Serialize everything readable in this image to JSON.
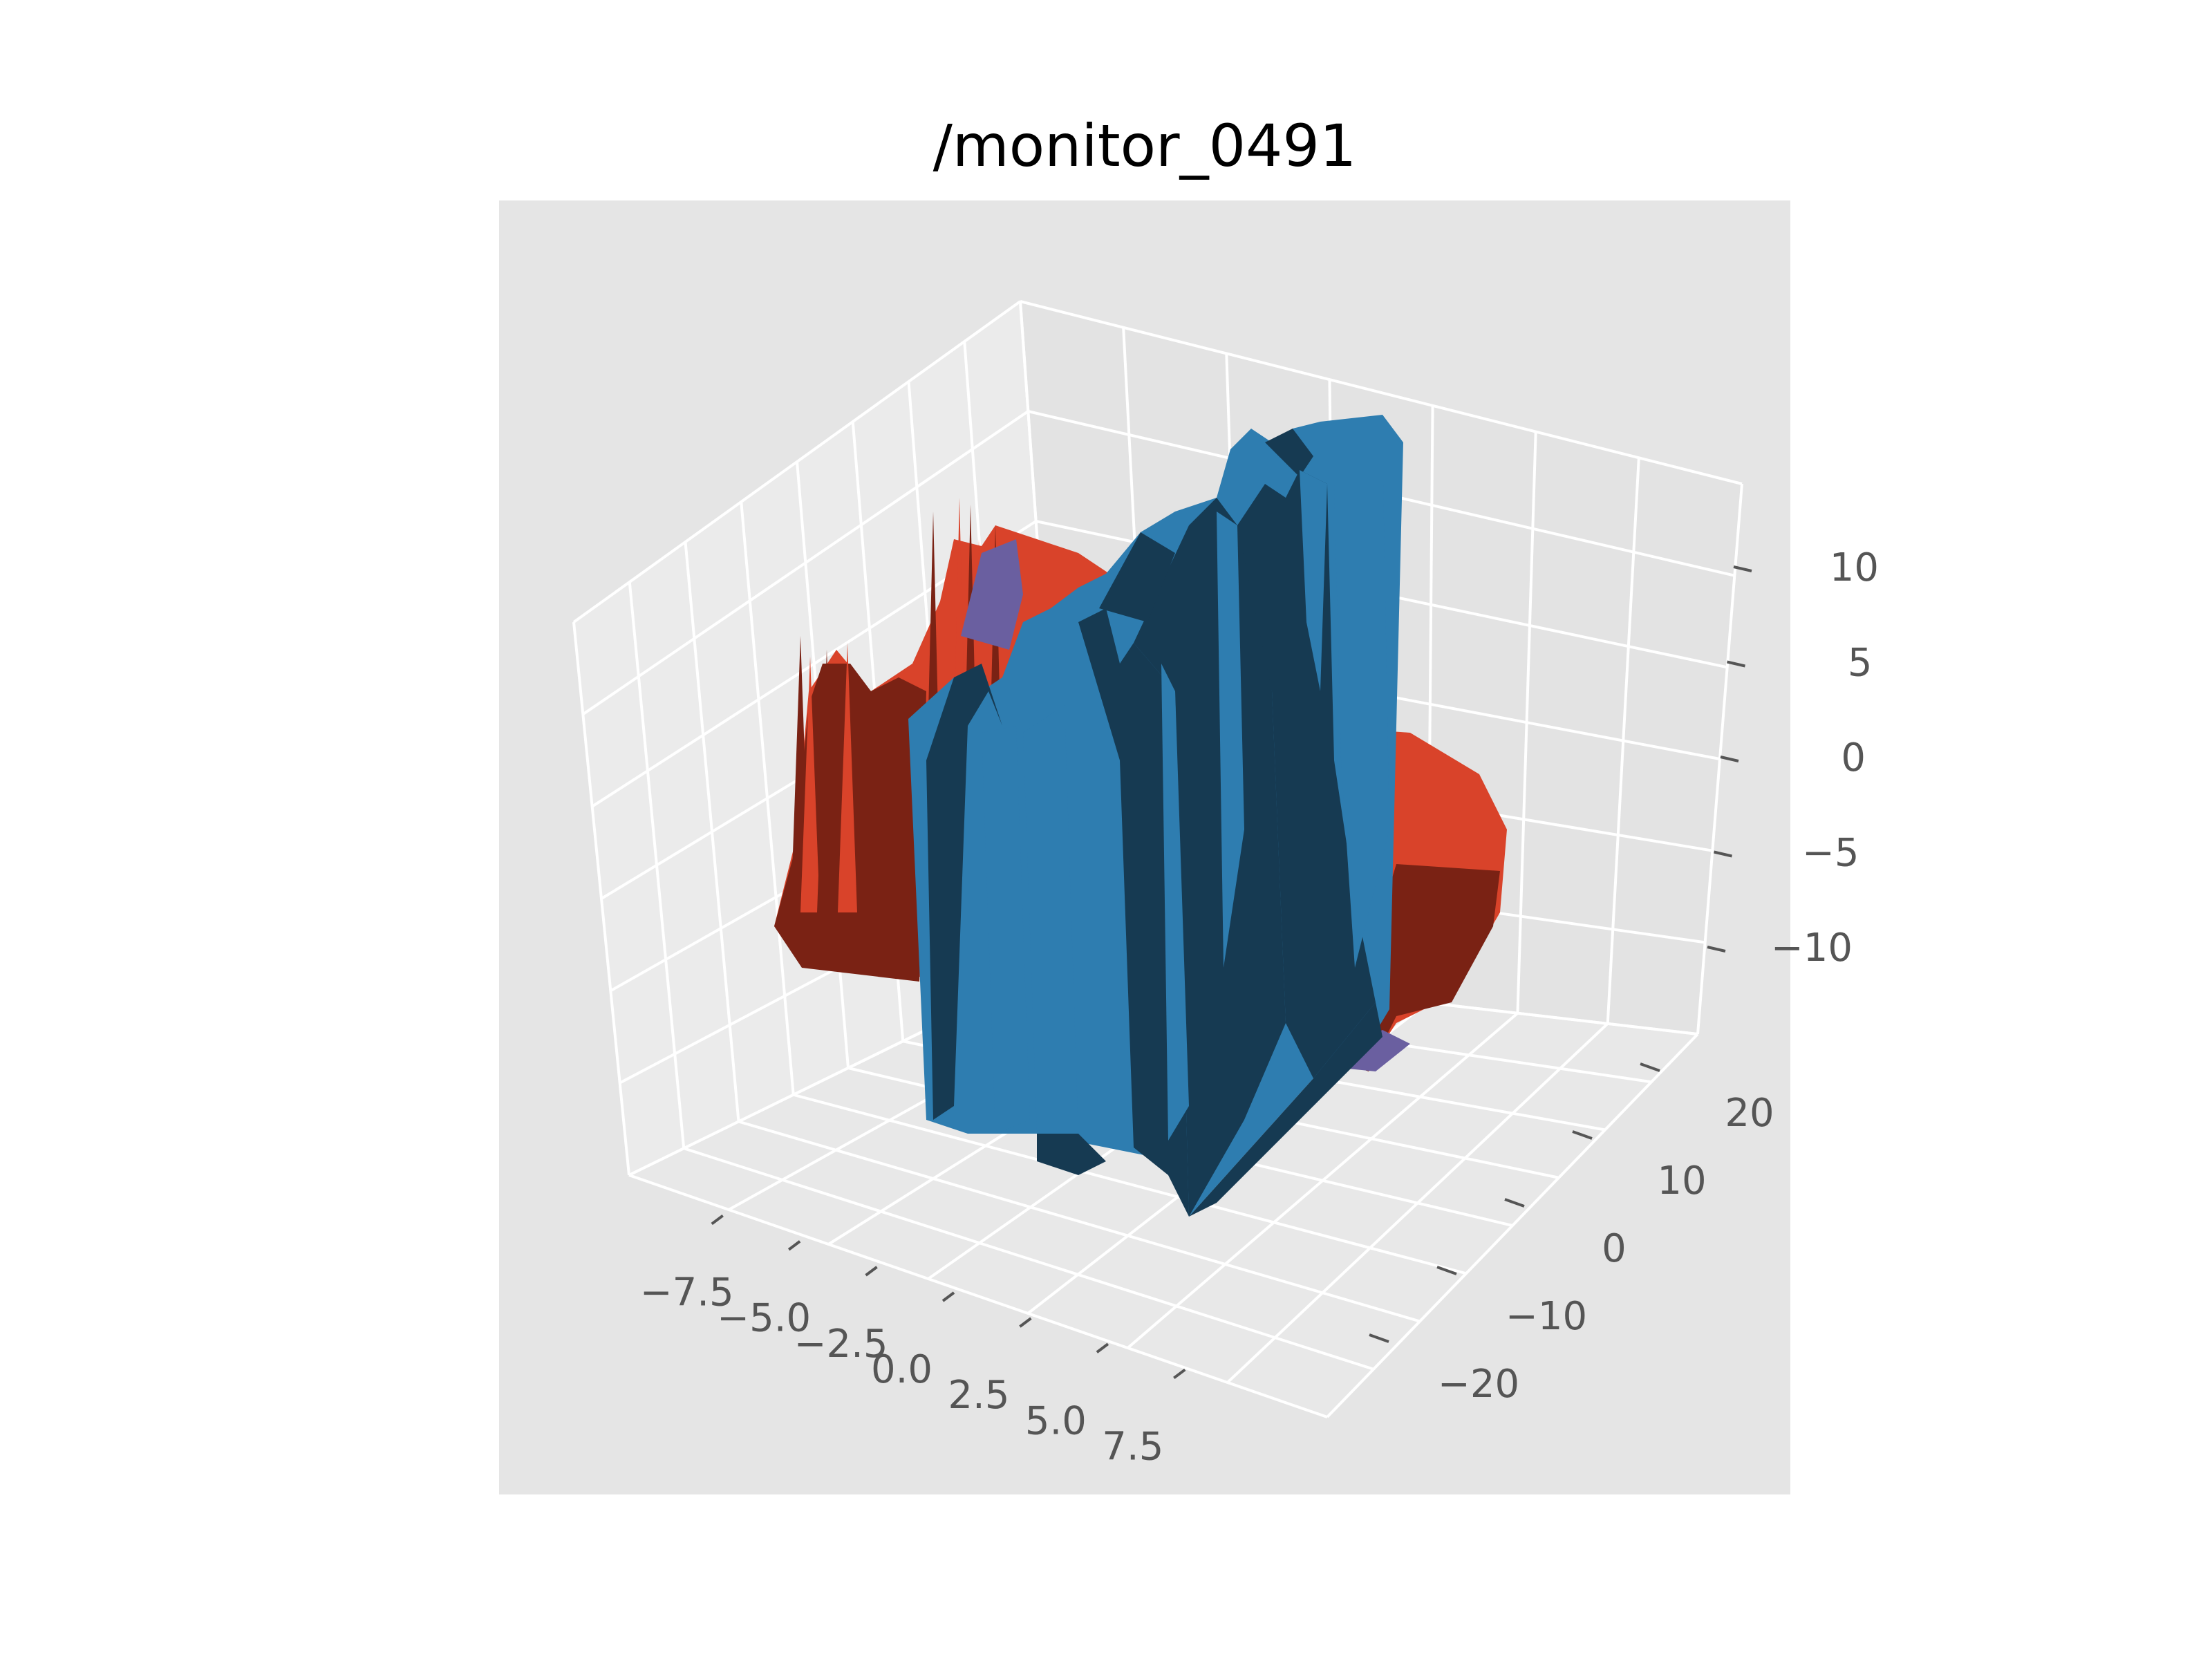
{
  "chart_data": {
    "type": "surface3d",
    "title": "/monitor_0491",
    "xlabel": "",
    "ylabel": "",
    "zlabel": "",
    "x_ticks": [
      "−7.5",
      "−5.0",
      "−2.5",
      "0.0",
      "2.5",
      "5.0",
      "7.5"
    ],
    "y_ticks": [
      "−20",
      "−10",
      "0",
      "10",
      "20"
    ],
    "z_ticks": [
      "−10",
      "−5",
      "0",
      "5",
      "10"
    ],
    "xlim": [
      -9,
      9
    ],
    "ylim": [
      -25,
      25
    ],
    "zlim": [
      -14,
      14
    ],
    "grid": true,
    "surfaces": [
      {
        "color": "#d9432a",
        "shape": "ring",
        "z_range": [
          -10,
          6
        ]
      },
      {
        "color": "#6a5fa0",
        "shape": "inner-ring",
        "z_range": [
          -12,
          7
        ]
      },
      {
        "color": "#2e7db0",
        "shape": "block-columns",
        "z_range": [
          -14,
          14
        ]
      }
    ],
    "colors": {
      "pane_face": "#e5e5e5",
      "pane_side": "#ebebeb",
      "grid": "#ffffff",
      "surface_red": "#d9432a",
      "surface_red_dark": "#7a2214",
      "surface_purple": "#6a5fa0",
      "surface_blue": "#2e7db0",
      "surface_blue_dark": "#163a52"
    }
  }
}
